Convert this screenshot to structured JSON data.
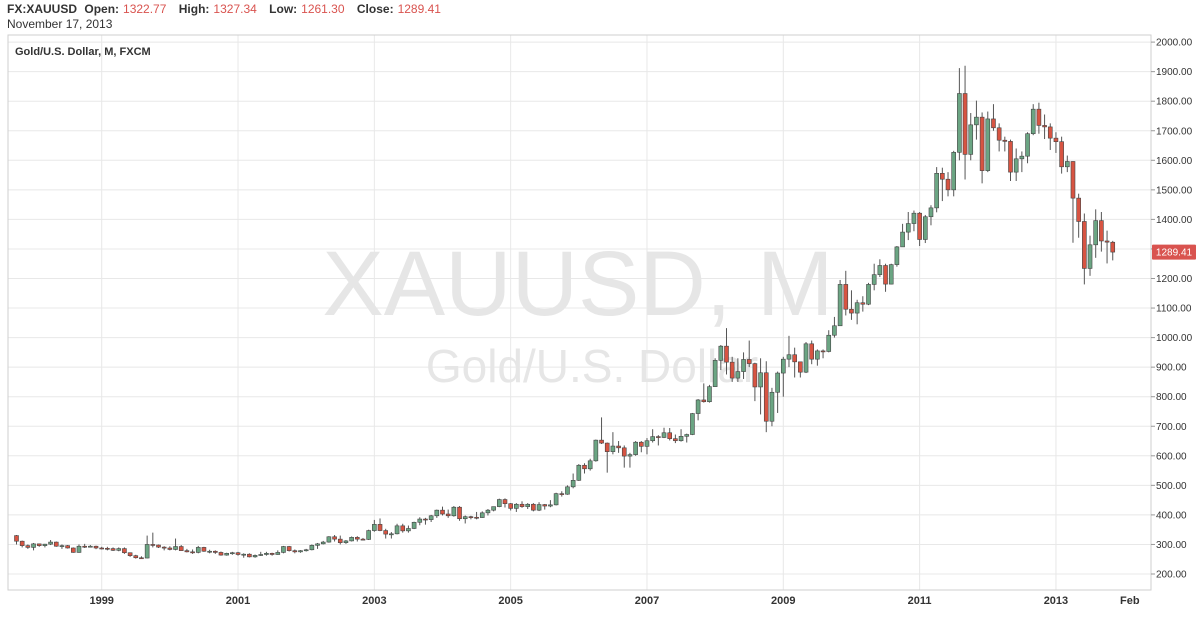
{
  "header": {
    "symbol": "FX:XAUUSD",
    "open_label": "Open:",
    "open_value": "1322.77",
    "high_label": "High:",
    "high_value": "1327.34",
    "low_label": "Low:",
    "low_value": "1261.30",
    "close_label": "Close:",
    "close_value": "1289.41",
    "date": "November 17, 2013"
  },
  "chart_title": "Gold/U.S. Dollar, M, FXCM",
  "watermark": {
    "line1": "XAUUSD, M",
    "line2": "Gold/U.S. Dollar"
  },
  "price_label": "1289.41",
  "colors": {
    "up": "#6ba583",
    "down": "#d75442",
    "wick": "#555555",
    "price_tag": "#d9534f"
  },
  "chart_data": {
    "type": "candlestick",
    "interval": "monthly",
    "ylim": [
      150,
      2050
    ],
    "y_ticks": [
      "200.00",
      "300.00",
      "400.00",
      "500.00",
      "600.00",
      "700.00",
      "800.00",
      "900.00",
      "1000.00",
      "1100.00",
      "1200.00",
      "1300.00",
      "1400.00",
      "1500.00",
      "1600.00",
      "1700.00",
      "1800.00",
      "1900.00",
      "2000.00"
    ],
    "x_ticks": [
      "1999",
      "2001",
      "2003",
      "2005",
      "2007",
      "2009",
      "2011",
      "2013",
      "Feb"
    ],
    "grid": true,
    "candles": [
      [
        "1997-10",
        330,
        332,
        300,
        311
      ],
      [
        "1997-11",
        311,
        313,
        290,
        296
      ],
      [
        "1997-12",
        296,
        300,
        285,
        290
      ],
      [
        "1998-01",
        290,
        305,
        280,
        302
      ],
      [
        "1998-02",
        302,
        303,
        292,
        296
      ],
      [
        "1998-03",
        296,
        302,
        290,
        301
      ],
      [
        "1998-04",
        301,
        315,
        298,
        308
      ],
      [
        "1998-05",
        308,
        310,
        292,
        294
      ],
      [
        "1998-06",
        294,
        300,
        285,
        296
      ],
      [
        "1998-07",
        296,
        298,
        286,
        288
      ],
      [
        "1998-08",
        288,
        290,
        272,
        273
      ],
      [
        "1998-09",
        273,
        300,
        272,
        294
      ],
      [
        "1998-10",
        294,
        302,
        288,
        293
      ],
      [
        "1998-11",
        293,
        298,
        290,
        294
      ],
      [
        "1998-12",
        294,
        296,
        284,
        288
      ],
      [
        "1999-01",
        288,
        292,
        283,
        287
      ],
      [
        "1999-02",
        287,
        292,
        280,
        286
      ],
      [
        "1999-03",
        286,
        290,
        278,
        280
      ],
      [
        "1999-04",
        280,
        290,
        277,
        286
      ],
      [
        "1999-05",
        286,
        290,
        268,
        272
      ],
      [
        "1999-06",
        272,
        273,
        258,
        262
      ],
      [
        "1999-07",
        262,
        265,
        252,
        255
      ],
      [
        "1999-08",
        255,
        260,
        251,
        254
      ],
      [
        "1999-09",
        254,
        330,
        253,
        300
      ],
      [
        "1999-10",
        300,
        340,
        290,
        298
      ],
      [
        "1999-11",
        298,
        300,
        288,
        291
      ],
      [
        "1999-12",
        291,
        294,
        280,
        288
      ],
      [
        "2000-01",
        288,
        294,
        280,
        283
      ],
      [
        "2000-02",
        283,
        320,
        280,
        293
      ],
      [
        "2000-03",
        293,
        298,
        282,
        279
      ],
      [
        "2000-04",
        279,
        285,
        273,
        275
      ],
      [
        "2000-05",
        275,
        283,
        268,
        273
      ],
      [
        "2000-06",
        273,
        295,
        270,
        290
      ],
      [
        "2000-07",
        290,
        292,
        275,
        277
      ],
      [
        "2000-08",
        277,
        282,
        270,
        277
      ],
      [
        "2000-09",
        277,
        280,
        268,
        273
      ],
      [
        "2000-10",
        273,
        276,
        262,
        264
      ],
      [
        "2000-11",
        264,
        272,
        262,
        270
      ],
      [
        "2000-12",
        270,
        275,
        265,
        272
      ],
      [
        "2001-01",
        272,
        275,
        262,
        266
      ],
      [
        "2001-02",
        266,
        270,
        255,
        267
      ],
      [
        "2001-03",
        267,
        270,
        256,
        258
      ],
      [
        "2001-04",
        258,
        266,
        255,
        263
      ],
      [
        "2001-05",
        263,
        275,
        261,
        266
      ],
      [
        "2001-06",
        266,
        275,
        262,
        270
      ],
      [
        "2001-07",
        270,
        272,
        262,
        266
      ],
      [
        "2001-08",
        266,
        280,
        265,
        273
      ],
      [
        "2001-09",
        273,
        295,
        270,
        293
      ],
      [
        "2001-10",
        293,
        295,
        276,
        279
      ],
      [
        "2001-11",
        279,
        283,
        270,
        275
      ],
      [
        "2001-12",
        275,
        281,
        272,
        279
      ],
      [
        "2002-01",
        279,
        285,
        276,
        282
      ],
      [
        "2002-02",
        282,
        300,
        280,
        297
      ],
      [
        "2002-03",
        297,
        305,
        285,
        302
      ],
      [
        "2002-04",
        302,
        312,
        300,
        308
      ],
      [
        "2002-05",
        308,
        328,
        306,
        326
      ],
      [
        "2002-06",
        326,
        332,
        310,
        318
      ],
      [
        "2002-07",
        318,
        330,
        300,
        306
      ],
      [
        "2002-08",
        306,
        315,
        302,
        312
      ],
      [
        "2002-09",
        312,
        327,
        310,
        324
      ],
      [
        "2002-10",
        324,
        328,
        310,
        318
      ],
      [
        "2002-11",
        318,
        322,
        315,
        317
      ],
      [
        "2002-12",
        317,
        350,
        315,
        347
      ],
      [
        "2003-01",
        347,
        383,
        343,
        368
      ],
      [
        "2003-02",
        368,
        388,
        345,
        347
      ],
      [
        "2003-03",
        347,
        353,
        320,
        335
      ],
      [
        "2003-04",
        335,
        342,
        320,
        336
      ],
      [
        "2003-05",
        336,
        370,
        334,
        363
      ],
      [
        "2003-06",
        363,
        370,
        340,
        346
      ],
      [
        "2003-07",
        346,
        364,
        340,
        354
      ],
      [
        "2003-08",
        354,
        377,
        352,
        375
      ],
      [
        "2003-09",
        375,
        392,
        365,
        386
      ],
      [
        "2003-10",
        386,
        390,
        367,
        384
      ],
      [
        "2003-11",
        384,
        400,
        376,
        397
      ],
      [
        "2003-12",
        397,
        418,
        390,
        416
      ],
      [
        "2004-01",
        416,
        428,
        398,
        403
      ],
      [
        "2004-02",
        403,
        418,
        390,
        397
      ],
      [
        "2004-03",
        397,
        430,
        394,
        426
      ],
      [
        "2004-04",
        426,
        430,
        380,
        387
      ],
      [
        "2004-05",
        387,
        398,
        371,
        394
      ],
      [
        "2004-06",
        394,
        397,
        385,
        392
      ],
      [
        "2004-07",
        392,
        410,
        385,
        391
      ],
      [
        "2004-08",
        391,
        412,
        390,
        407
      ],
      [
        "2004-09",
        407,
        420,
        398,
        416
      ],
      [
        "2004-10",
        416,
        428,
        412,
        428
      ],
      [
        "2004-11",
        428,
        455,
        426,
        452
      ],
      [
        "2004-12",
        452,
        456,
        425,
        438
      ],
      [
        "2005-01",
        438,
        440,
        415,
        422
      ],
      [
        "2005-02",
        422,
        440,
        410,
        436
      ],
      [
        "2005-03",
        436,
        446,
        424,
        428
      ],
      [
        "2005-04",
        428,
        440,
        420,
        436
      ],
      [
        "2005-05",
        436,
        440,
        412,
        416
      ],
      [
        "2005-06",
        416,
        443,
        413,
        435
      ],
      [
        "2005-07",
        435,
        437,
        418,
        430
      ],
      [
        "2005-08",
        430,
        450,
        426,
        434
      ],
      [
        "2005-09",
        434,
        475,
        432,
        472
      ],
      [
        "2005-10",
        472,
        480,
        462,
        470
      ],
      [
        "2005-11",
        470,
        500,
        468,
        495
      ],
      [
        "2005-12",
        495,
        540,
        490,
        517
      ],
      [
        "2006-01",
        517,
        572,
        515,
        568
      ],
      [
        "2006-02",
        568,
        575,
        540,
        556
      ],
      [
        "2006-03",
        556,
        590,
        550,
        583
      ],
      [
        "2006-04",
        583,
        655,
        580,
        653
      ],
      [
        "2006-05",
        653,
        730,
        640,
        643
      ],
      [
        "2006-06",
        643,
        645,
        543,
        614
      ],
      [
        "2006-07",
        614,
        680,
        605,
        633
      ],
      [
        "2006-08",
        633,
        650,
        610,
        627
      ],
      [
        "2006-09",
        627,
        635,
        560,
        599
      ],
      [
        "2006-10",
        599,
        610,
        560,
        604
      ],
      [
        "2006-11",
        604,
        650,
        600,
        646
      ],
      [
        "2006-12",
        646,
        650,
        612,
        632
      ],
      [
        "2007-01",
        632,
        660,
        605,
        651
      ],
      [
        "2007-02",
        651,
        690,
        645,
        665
      ],
      [
        "2007-03",
        665,
        670,
        635,
        662
      ],
      [
        "2007-04",
        662,
        695,
        660,
        678
      ],
      [
        "2007-05",
        678,
        694,
        652,
        658
      ],
      [
        "2007-06",
        658,
        672,
        643,
        651
      ],
      [
        "2007-07",
        651,
        690,
        648,
        666
      ],
      [
        "2007-08",
        666,
        675,
        645,
        672
      ],
      [
        "2007-09",
        672,
        745,
        670,
        743
      ],
      [
        "2007-10",
        743,
        792,
        720,
        789
      ],
      [
        "2007-11",
        789,
        845,
        780,
        783
      ],
      [
        "2007-12",
        783,
        840,
        780,
        834
      ],
      [
        "2008-01",
        834,
        930,
        833,
        923
      ],
      [
        "2008-02",
        923,
        975,
        890,
        971
      ],
      [
        "2008-03",
        971,
        1032,
        875,
        917
      ],
      [
        "2008-04",
        917,
        935,
        850,
        863
      ],
      [
        "2008-05",
        863,
        930,
        850,
        885
      ],
      [
        "2008-06",
        885,
        950,
        860,
        926
      ],
      [
        "2008-07",
        926,
        990,
        900,
        912
      ],
      [
        "2008-08",
        912,
        915,
        785,
        833
      ],
      [
        "2008-09",
        833,
        930,
        740,
        881
      ],
      [
        "2008-10",
        881,
        920,
        680,
        717
      ],
      [
        "2008-11",
        717,
        830,
        700,
        815
      ],
      [
        "2008-12",
        815,
        885,
        745,
        880
      ],
      [
        "2009-01",
        880,
        935,
        800,
        927
      ],
      [
        "2009-02",
        927,
        1006,
        900,
        942
      ],
      [
        "2009-03",
        942,
        966,
        865,
        918
      ],
      [
        "2009-04",
        918,
        910,
        865,
        883
      ],
      [
        "2009-05",
        883,
        985,
        880,
        979
      ],
      [
        "2009-06",
        979,
        990,
        910,
        927
      ],
      [
        "2009-07",
        927,
        960,
        905,
        955
      ],
      [
        "2009-08",
        955,
        960,
        930,
        953
      ],
      [
        "2009-09",
        953,
        1025,
        950,
        1008
      ],
      [
        "2009-10",
        1008,
        1070,
        1000,
        1040
      ],
      [
        "2009-11",
        1040,
        1195,
        1040,
        1180
      ],
      [
        "2009-12",
        1180,
        1226,
        1075,
        1096
      ],
      [
        "2010-01",
        1096,
        1160,
        1060,
        1083
      ],
      [
        "2010-02",
        1083,
        1128,
        1045,
        1118
      ],
      [
        "2010-03",
        1118,
        1140,
        1088,
        1113
      ],
      [
        "2010-04",
        1113,
        1185,
        1110,
        1180
      ],
      [
        "2010-05",
        1180,
        1250,
        1160,
        1213
      ],
      [
        "2010-06",
        1213,
        1265,
        1205,
        1244
      ],
      [
        "2010-07",
        1244,
        1250,
        1155,
        1181
      ],
      [
        "2010-08",
        1181,
        1250,
        1180,
        1247
      ],
      [
        "2010-09",
        1247,
        1310,
        1240,
        1307
      ],
      [
        "2010-10",
        1307,
        1385,
        1310,
        1357
      ],
      [
        "2010-11",
        1357,
        1425,
        1330,
        1386
      ],
      [
        "2010-12",
        1386,
        1430,
        1360,
        1421
      ],
      [
        "2011-01",
        1421,
        1425,
        1310,
        1332
      ],
      [
        "2011-02",
        1332,
        1415,
        1320,
        1409
      ],
      [
        "2011-03",
        1409,
        1448,
        1380,
        1439
      ],
      [
        "2011-04",
        1439,
        1577,
        1424,
        1556
      ],
      [
        "2011-05",
        1556,
        1575,
        1462,
        1536
      ],
      [
        "2011-06",
        1536,
        1560,
        1478,
        1500
      ],
      [
        "2011-07",
        1500,
        1632,
        1478,
        1627
      ],
      [
        "2011-08",
        1627,
        1912,
        1600,
        1826
      ],
      [
        "2011-09",
        1826,
        1920,
        1535,
        1620
      ],
      [
        "2011-10",
        1620,
        1760,
        1600,
        1720
      ],
      [
        "2011-11",
        1720,
        1802,
        1670,
        1746
      ],
      [
        "2011-12",
        1746,
        1762,
        1522,
        1565
      ],
      [
        "2012-01",
        1565,
        1765,
        1560,
        1740
      ],
      [
        "2012-02",
        1740,
        1790,
        1700,
        1710
      ],
      [
        "2012-03",
        1710,
        1725,
        1630,
        1668
      ],
      [
        "2012-04",
        1668,
        1680,
        1630,
        1664
      ],
      [
        "2012-05",
        1664,
        1670,
        1530,
        1560
      ],
      [
        "2012-06",
        1560,
        1640,
        1530,
        1605
      ],
      [
        "2012-07",
        1605,
        1630,
        1560,
        1614
      ],
      [
        "2012-08",
        1614,
        1695,
        1590,
        1690
      ],
      [
        "2012-09",
        1690,
        1790,
        1685,
        1773
      ],
      [
        "2012-10",
        1773,
        1795,
        1690,
        1718
      ],
      [
        "2012-11",
        1718,
        1755,
        1672,
        1713
      ],
      [
        "2012-12",
        1713,
        1725,
        1635,
        1675
      ],
      [
        "2013-01",
        1675,
        1695,
        1625,
        1663
      ],
      [
        "2013-02",
        1663,
        1680,
        1555,
        1578
      ],
      [
        "2013-03",
        1578,
        1616,
        1560,
        1596
      ],
      [
        "2013-04",
        1596,
        1597,
        1321,
        1472
      ],
      [
        "2013-05",
        1472,
        1487,
        1338,
        1393
      ],
      [
        "2013-06",
        1393,
        1420,
        1180,
        1234
      ],
      [
        "2013-07",
        1234,
        1345,
        1209,
        1314
      ],
      [
        "2013-08",
        1314,
        1434,
        1270,
        1396
      ],
      [
        "2013-09",
        1396,
        1425,
        1291,
        1327
      ],
      [
        "2013-10",
        1327,
        1362,
        1251,
        1323
      ],
      [
        "2013-11",
        1322.77,
        1327.34,
        1261.3,
        1289.41
      ]
    ]
  }
}
